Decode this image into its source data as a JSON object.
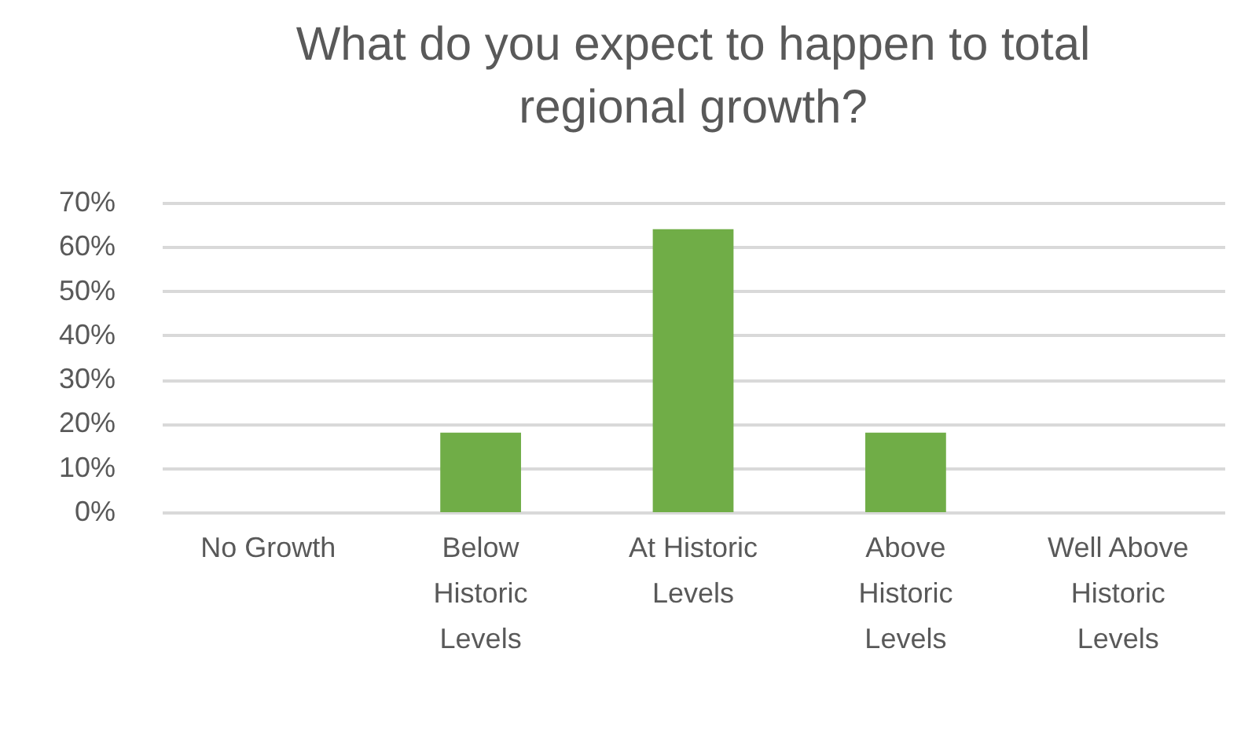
{
  "chart_data": {
    "type": "bar",
    "title": "What do you expect to happen to total regional growth?",
    "categories": [
      "No Growth",
      "Below Historic Levels",
      "At Historic Levels",
      "Above Historic Levels",
      "Well Above Historic Levels"
    ],
    "values": [
      0,
      18,
      64,
      18,
      0
    ],
    "color": "#70ad47",
    "ylim": [
      0,
      70
    ],
    "yticks": [
      {
        "value": 0,
        "label": "0%"
      },
      {
        "value": 10,
        "label": "10%"
      },
      {
        "value": 20,
        "label": "20%"
      },
      {
        "value": 30,
        "label": "30%"
      },
      {
        "value": 40,
        "label": "40%"
      },
      {
        "value": 50,
        "label": "50%"
      },
      {
        "value": 60,
        "label": "60%"
      },
      {
        "value": 70,
        "label": "70%"
      }
    ],
    "grid": "y"
  }
}
